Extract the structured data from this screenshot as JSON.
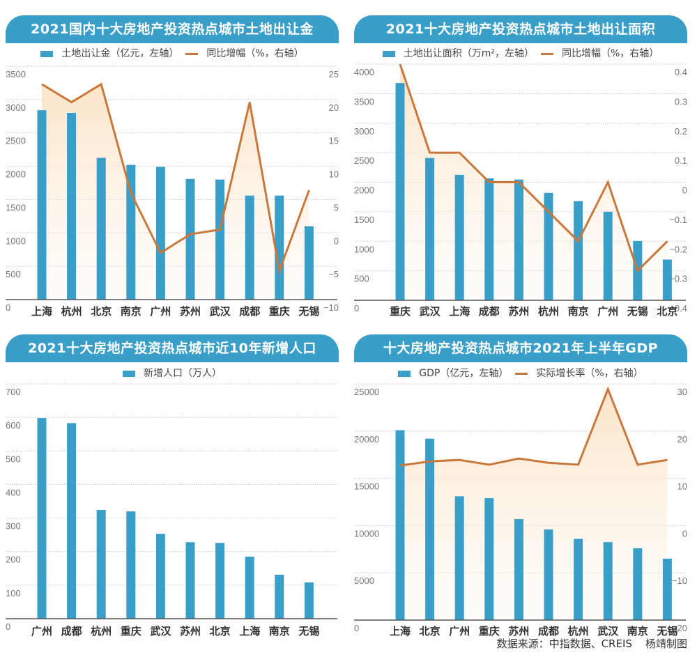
{
  "footer": {
    "source": "数据来源：中指数据、CREIS",
    "author": "杨靖制图"
  },
  "panels": [
    {
      "title": "2021国内十大房地产投资热点城市土地出让金",
      "legend_bar": "土地出让金（亿元，左轴）",
      "legend_line": "同比增幅（%，右轴）"
    },
    {
      "title": "2021十大房地产投资热点城市土地出让面积",
      "legend_bar": "土地出让面积（万m²，左轴）",
      "legend_line": "同比增幅（%，右轴）"
    },
    {
      "title": "2021十大房地产投资热点城市近10年新增人口",
      "legend_bar": "新增人口（万人）",
      "legend_line": null
    },
    {
      "title": "十大房地产投资热点城市2021年上半年GDP",
      "legend_bar": "GDP（亿元，左轴）",
      "legend_line": "实际增长率（%，右轴）"
    }
  ],
  "colors": {
    "bar": "#3a9fc8",
    "line": "#c9773a",
    "header": "#3a9fc8",
    "area_top": "#fbe3c6"
  },
  "chart_data": [
    {
      "type": "bar+line",
      "title": "2021国内十大房地产投资热点城市土地出让金",
      "categories": [
        "上海",
        "杭州",
        "北京",
        "南京",
        "广州",
        "苏州",
        "武汉",
        "成都",
        "重庆",
        "无锡"
      ],
      "series": [
        {
          "name": "土地出让金（亿元，左轴）",
          "type": "bar",
          "axis": "left",
          "values": [
            2840,
            2800,
            2125,
            2020,
            1990,
            1810,
            1800,
            1560,
            1560,
            1100
          ]
        },
        {
          "name": "同比增幅（%，右轴）",
          "type": "line",
          "axis": "right",
          "values": [
            22.3,
            19.6,
            22.3,
            6.0,
            -3.0,
            -0.2,
            0.5,
            19.6,
            -5.7,
            6.4
          ]
        }
      ],
      "left_axis": {
        "ylim": [
          0,
          3500
        ],
        "ticks": [
          "0",
          "500",
          "1000",
          "1500",
          "2000",
          "2500",
          "3000",
          "3500"
        ]
      },
      "right_axis": {
        "ylim": [
          -10,
          25
        ],
        "ticks": [
          "−10",
          "−5",
          "0",
          "5",
          "10",
          "15",
          "20",
          "25"
        ]
      },
      "grid": true,
      "legend": "top-center"
    },
    {
      "type": "bar+line",
      "title": "2021十大房地产投资热点城市土地出让面积",
      "categories": [
        "重庆",
        "武汉",
        "上海",
        "成都",
        "苏州",
        "杭州",
        "南京",
        "广州",
        "无锡",
        "北京"
      ],
      "series": [
        {
          "name": "土地出让面积（万m²，左轴）",
          "type": "bar",
          "axis": "left",
          "values": [
            3680,
            2410,
            2125,
            2065,
            2045,
            1820,
            1680,
            1500,
            1005,
            690
          ]
        },
        {
          "name": "同比增幅（%，右轴）",
          "type": "line",
          "axis": "right",
          "values": [
            0.4,
            0.1,
            0.1,
            0.0,
            0.0,
            -0.1,
            -0.2,
            0.0,
            -0.3,
            -0.2
          ]
        }
      ],
      "left_axis": {
        "ylim": [
          0,
          4000
        ],
        "ticks": [
          "0",
          "500",
          "1000",
          "1500",
          "2000",
          "2500",
          "3000",
          "3500",
          "4000"
        ]
      },
      "right_axis": {
        "ylim": [
          -0.4,
          0.4
        ],
        "ticks": [
          "−0.4",
          "−0.3",
          "−0.2",
          "−0.1",
          "0",
          "0.1",
          "0.2",
          "0.3",
          "0.4"
        ]
      },
      "grid": true,
      "legend": "top-center"
    },
    {
      "type": "bar",
      "title": "2021十大房地产投资热点城市近10年新增人口",
      "categories": [
        "广州",
        "成都",
        "杭州",
        "重庆",
        "武汉",
        "苏州",
        "北京",
        "上海",
        "南京",
        "无锡"
      ],
      "series": [
        {
          "name": "新增人口（万人）",
          "type": "bar",
          "axis": "left",
          "values": [
            598,
            583,
            324,
            320,
            253,
            228,
            226,
            185,
            131,
            108
          ]
        }
      ],
      "left_axis": {
        "ylim": [
          0,
          700
        ],
        "ticks": [
          "0",
          "100",
          "200",
          "300",
          "400",
          "500",
          "600",
          "700"
        ]
      },
      "right_axis": null,
      "grid": true,
      "legend": "top-center"
    },
    {
      "type": "bar+line",
      "title": "十大房地产投资热点城市2021年上半年GDP",
      "categories": [
        "上海",
        "北京",
        "广州",
        "重庆",
        "苏州",
        "成都",
        "杭州",
        "武汉",
        "南京",
        "无锡"
      ],
      "series": [
        {
          "name": "GDP（亿元，左轴）",
          "type": "bar",
          "axis": "left",
          "values": [
            20100,
            19200,
            13100,
            12900,
            10700,
            9600,
            8600,
            8250,
            7600,
            6500
          ]
        },
        {
          "name": "实际增长率（%，右轴）",
          "type": "line",
          "axis": "right",
          "values": [
            12.7,
            13.6,
            13.9,
            12.9,
            14.2,
            13.3,
            12.9,
            28.9,
            12.9,
            13.9
          ]
        }
      ],
      "left_axis": {
        "ylim": [
          0,
          25000
        ],
        "ticks": [
          "0",
          "5000",
          "10000",
          "15000",
          "20000",
          "25000"
        ]
      },
      "right_axis": {
        "ylim": [
          -20,
          30
        ],
        "ticks": [
          "−20",
          "−10",
          "0",
          "10",
          "20",
          "30"
        ]
      },
      "grid": true,
      "legend": "top-center"
    }
  ]
}
